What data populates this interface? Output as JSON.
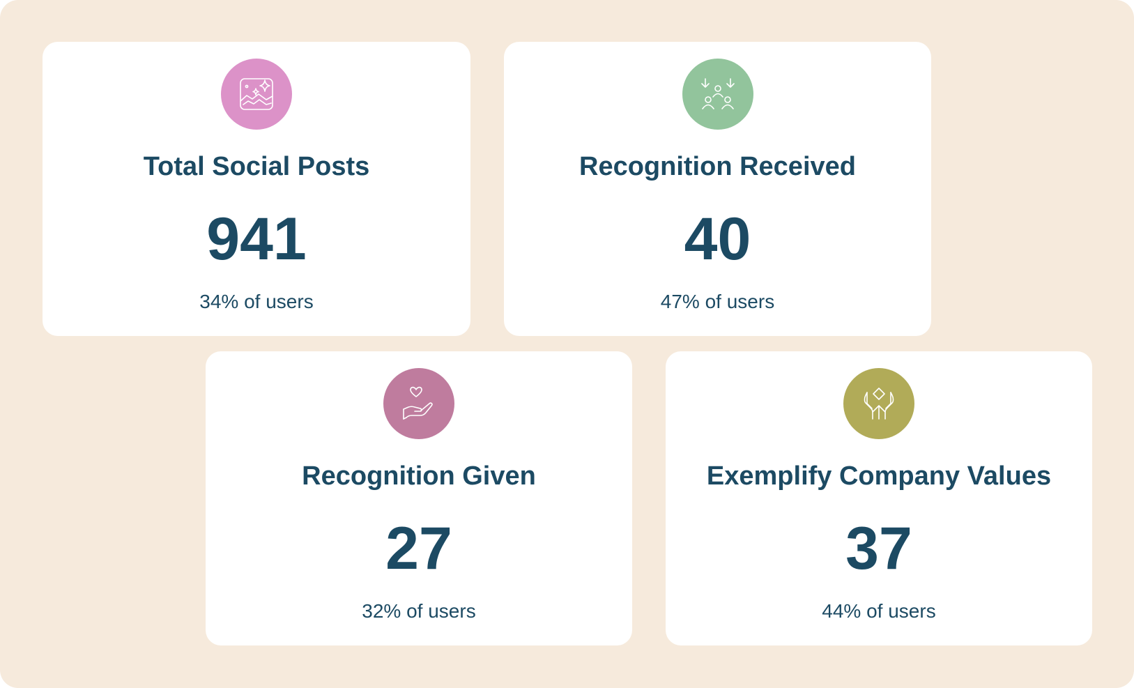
{
  "cards": [
    {
      "title": "Total Social Posts",
      "value": "941",
      "subtitle": "34% of users",
      "icon": "image-sparkle-icon",
      "icon_color": "#dc92c8"
    },
    {
      "title": "Recognition Received",
      "value": "40",
      "subtitle": "47% of users",
      "icon": "group-arrows-icon",
      "icon_color": "#92c49c"
    },
    {
      "title": "Recognition Given",
      "value": "27",
      "subtitle": "32% of users",
      "icon": "heart-hand-icon",
      "icon_color": "#bf7c9e"
    },
    {
      "title": "Exemplify Company Values",
      "value": "37",
      "subtitle": "44% of users",
      "icon": "hands-diamond-icon",
      "icon_color": "#b1ab58"
    }
  ],
  "colors": {
    "background": "#f6eadc",
    "card": "#ffffff",
    "text": "#1c4a63"
  }
}
